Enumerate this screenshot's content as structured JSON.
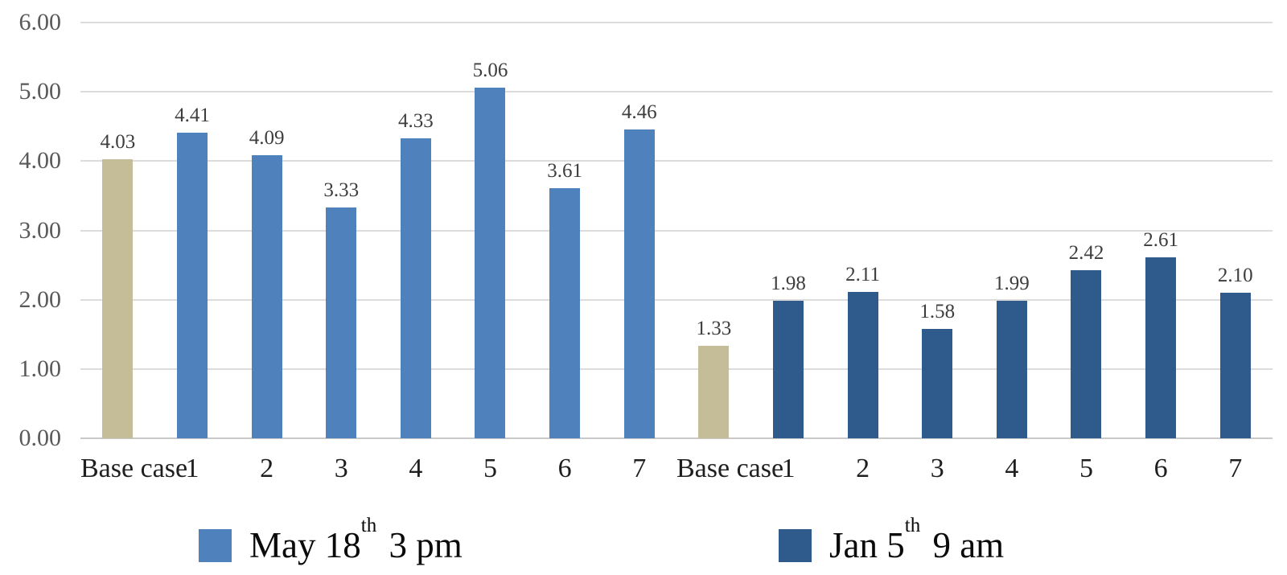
{
  "chart_data": {
    "type": "bar",
    "title": "",
    "xlabel": "",
    "ylabel": "",
    "ylim": [
      0,
      6
    ],
    "grid": true,
    "legend_position": "bottom",
    "base_case_color": "#c5bd97",
    "categories_per_group": [
      "Base case",
      "1",
      "2",
      "3",
      "4",
      "5",
      "6",
      "7"
    ],
    "yticks": [
      {
        "value": 0,
        "label": "0.00"
      },
      {
        "value": 1,
        "label": "1.00"
      },
      {
        "value": 2,
        "label": "2.00"
      },
      {
        "value": 3,
        "label": "3.00"
      },
      {
        "value": 4,
        "label": "4.00"
      },
      {
        "value": 5,
        "label": "5.00"
      },
      {
        "value": 6,
        "label": "6.00"
      }
    ],
    "series": [
      {
        "name": "May 18th 3 pm",
        "name_parts": {
          "pre": "May 18",
          "sup": "th",
          "post": " 3 pm"
        },
        "color": "#4f81bd",
        "values": [
          4.03,
          4.41,
          4.09,
          3.33,
          4.33,
          5.06,
          3.61,
          4.46
        ],
        "value_labels": [
          "4.03",
          "4.41",
          "4.09",
          "3.33",
          "4.33",
          "5.06",
          "3.61",
          "4.46"
        ]
      },
      {
        "name": "Jan 5th 9 am",
        "name_parts": {
          "pre": "Jan 5",
          "sup": "th",
          "post": " 9 am"
        },
        "color": "#2f5b8c",
        "values": [
          1.33,
          1.98,
          2.11,
          1.58,
          1.99,
          2.42,
          2.61,
          2.1
        ],
        "value_labels": [
          "1.33",
          "1.98",
          "2.11",
          "1.58",
          "1.99",
          "2.42",
          "2.61",
          "2.10"
        ]
      }
    ]
  },
  "colors": {
    "gridline": "#dcdcdc",
    "baseline": "#c9c9c9",
    "y_tick_label": "#595959",
    "x_tick_label": "#1f1f1f",
    "value_label": "#3d3d3d",
    "series_light_blue": "#4f81bd",
    "series_dark_blue": "#2f5b8c",
    "base_case_tan": "#c5bd97",
    "background": "#ffffff"
  }
}
